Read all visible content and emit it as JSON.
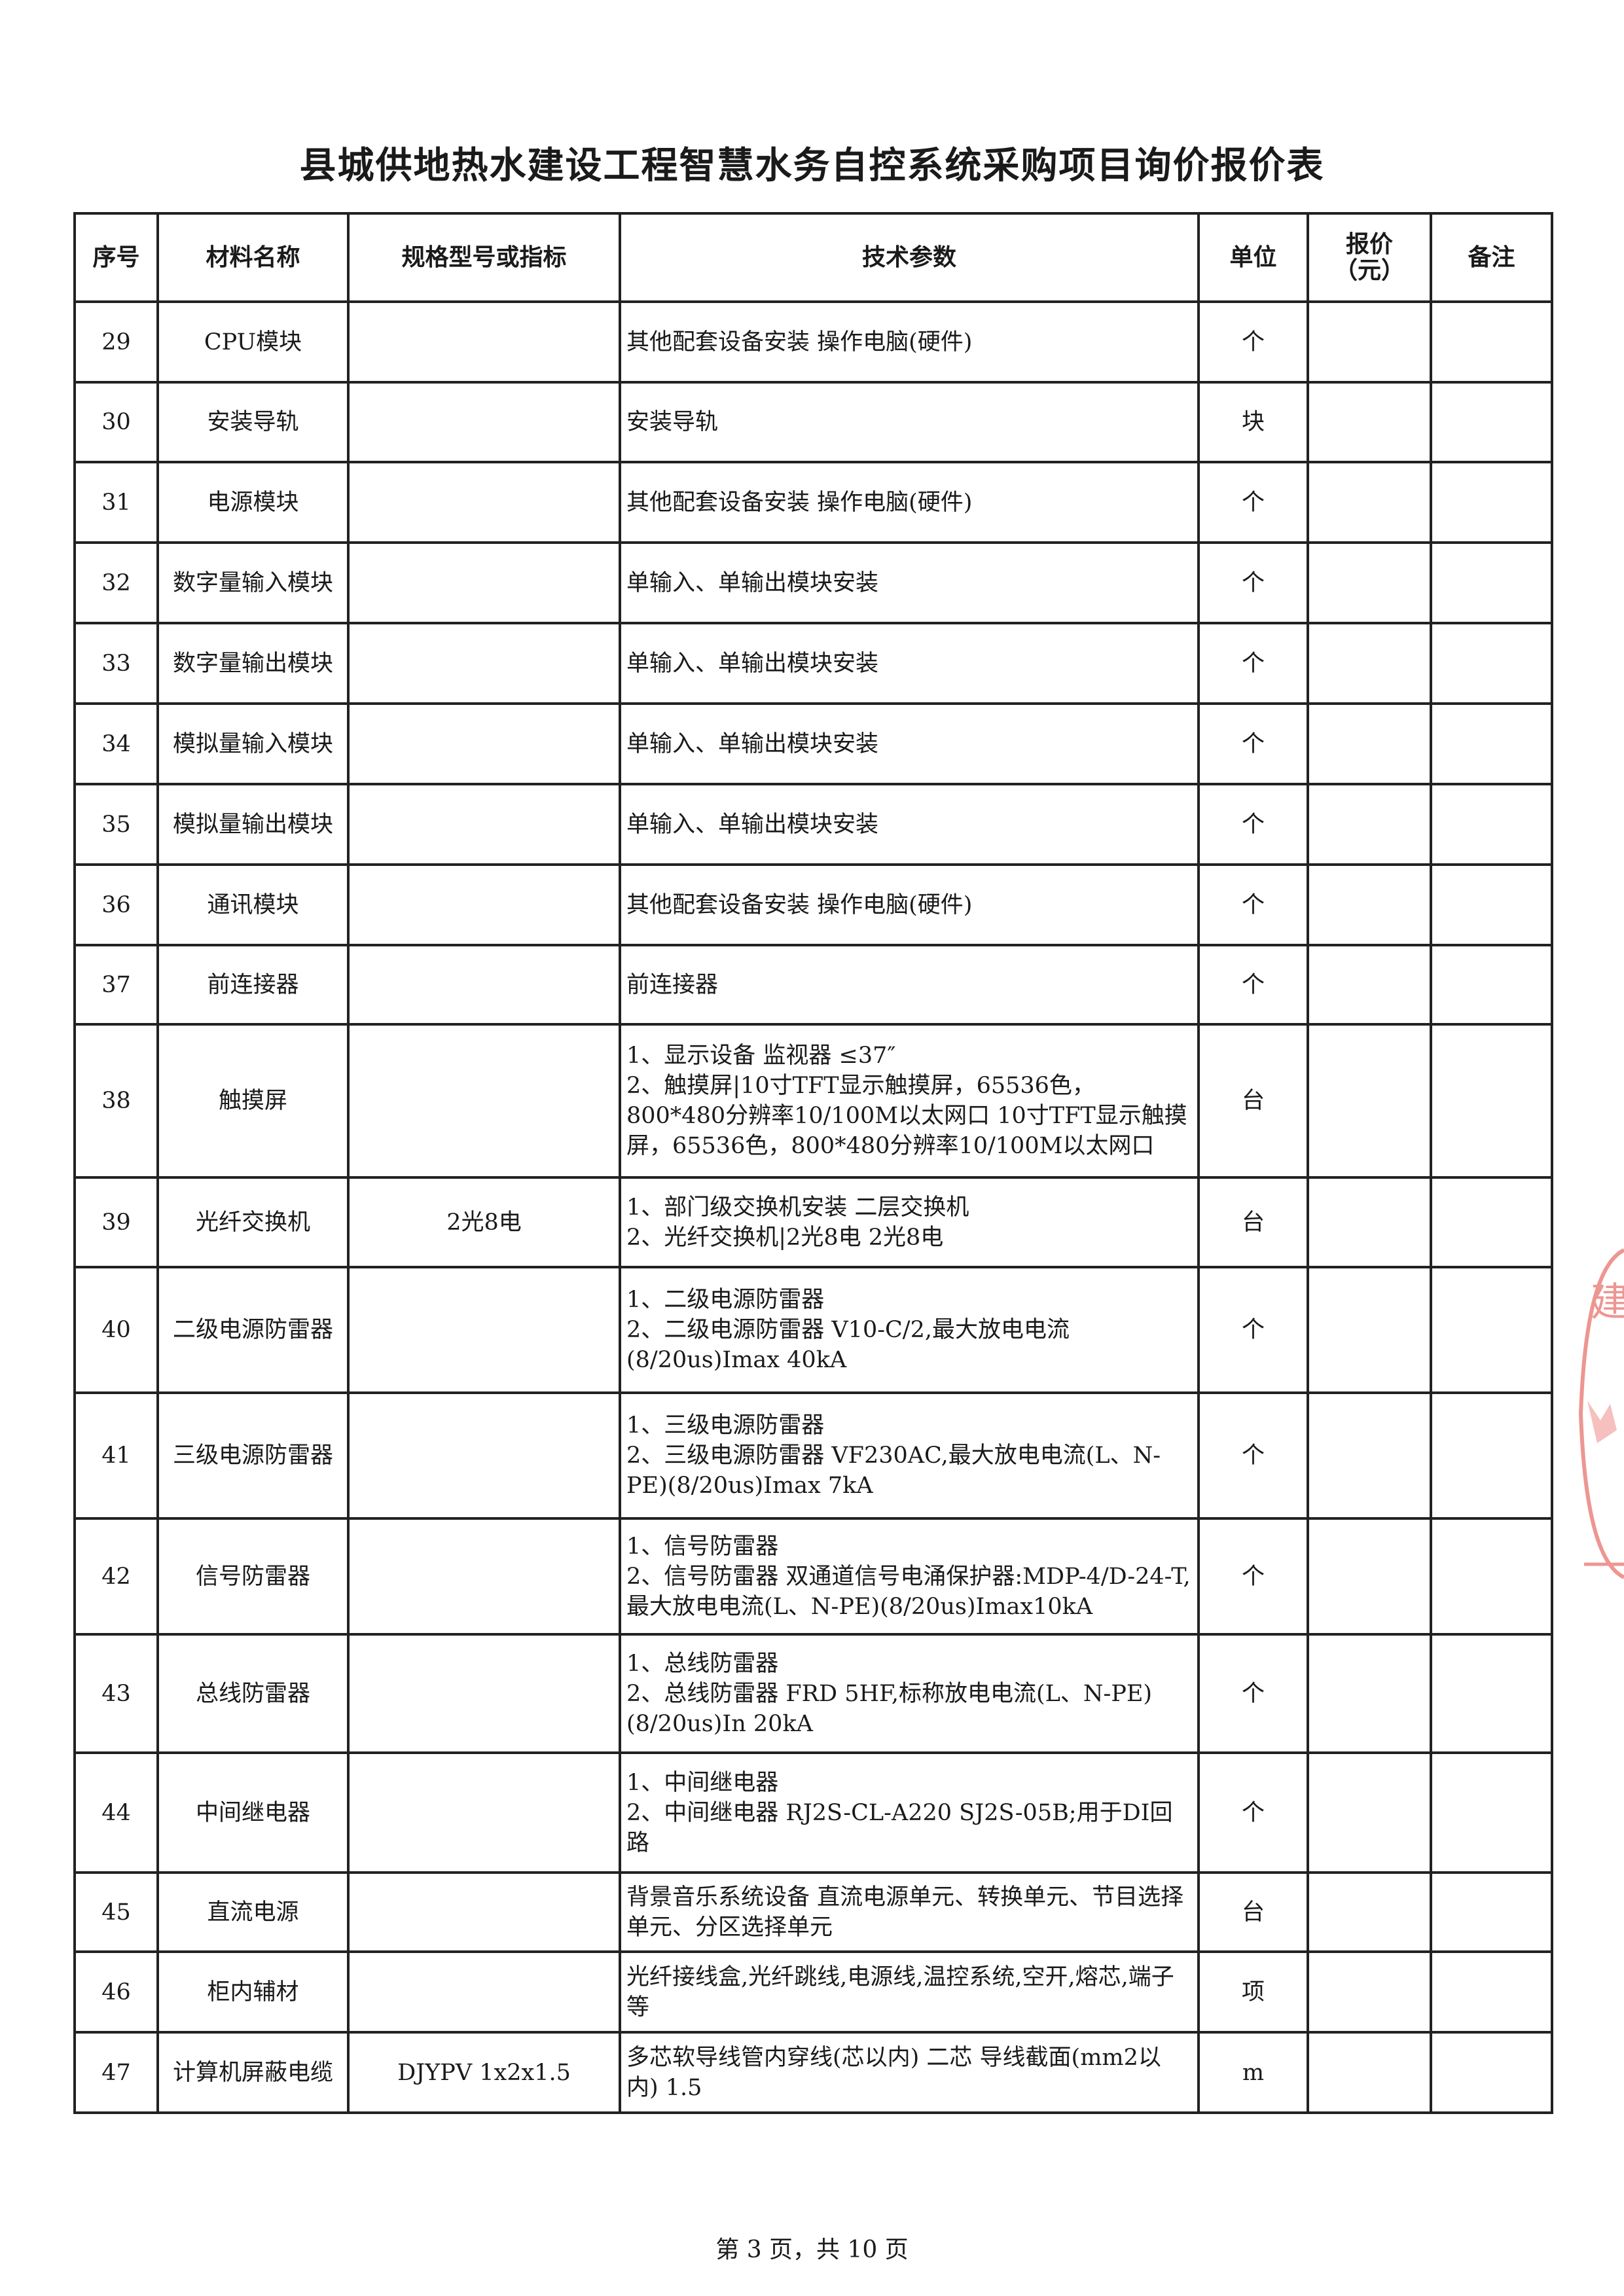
{
  "title": "县城供地热水建设工程智慧水务自控系统采购项目询价报价表",
  "table": {
    "headers": [
      "序号",
      "材料名称",
      "规格型号或指标",
      "技术参数",
      "单位",
      "报价\n（元）",
      "备注"
    ],
    "rows": [
      {
        "no": "29",
        "name": "CPU模块",
        "spec": "",
        "param": "其他配套设备安装 操作电脑(硬件)",
        "unit": "个",
        "price": "",
        "note": ""
      },
      {
        "no": "30",
        "name": "安装导轨",
        "spec": "",
        "param": "安装导轨",
        "unit": "块",
        "price": "",
        "note": ""
      },
      {
        "no": "31",
        "name": "电源模块",
        "spec": "",
        "param": "其他配套设备安装 操作电脑(硬件)",
        "unit": "个",
        "price": "",
        "note": ""
      },
      {
        "no": "32",
        "name": "数字量输入模块",
        "spec": "",
        "param": "单输入、单输出模块安装",
        "unit": "个",
        "price": "",
        "note": ""
      },
      {
        "no": "33",
        "name": "数字量输出模块",
        "spec": "",
        "param": "单输入、单输出模块安装",
        "unit": "个",
        "price": "",
        "note": ""
      },
      {
        "no": "34",
        "name": "模拟量输入模块",
        "spec": "",
        "param": "单输入、单输出模块安装",
        "unit": "个",
        "price": "",
        "note": ""
      },
      {
        "no": "35",
        "name": "模拟量输出模块",
        "spec": "",
        "param": "单输入、单输出模块安装",
        "unit": "个",
        "price": "",
        "note": ""
      },
      {
        "no": "36",
        "name": "通讯模块",
        "spec": "",
        "param": "其他配套设备安装 操作电脑(硬件)",
        "unit": "个",
        "price": "",
        "note": ""
      },
      {
        "no": "37",
        "name": "前连接器",
        "spec": "",
        "param": "前连接器",
        "unit": "个",
        "price": "",
        "note": ""
      },
      {
        "no": "38",
        "name": "触摸屏",
        "spec": "",
        "param": "1、显示设备 监视器 ≤37″\n2、触摸屏|10寸TFT显示触摸屏，65536色，800*480分辨率10/100M以太网口 10寸TFT显示触摸屏，65536色，800*480分辨率10/100M以太网口",
        "unit": "台",
        "price": "",
        "note": ""
      },
      {
        "no": "39",
        "name": "光纤交换机",
        "spec": "2光8电",
        "param": "1、部门级交换机安装 二层交换机\n2、光纤交换机|2光8电 2光8电",
        "unit": "台",
        "price": "",
        "note": ""
      },
      {
        "no": "40",
        "name": "二级电源防雷器",
        "spec": "",
        "param": "1、二级电源防雷器\n2、二级电源防雷器 V10-C/2,最大放电电流(8/20us)Imax 40kA",
        "unit": "个",
        "price": "",
        "note": ""
      },
      {
        "no": "41",
        "name": "三级电源防雷器",
        "spec": "",
        "param": "1、三级电源防雷器\n2、三级电源防雷器 VF230AC,最大放电电流(L、N-PE)(8/20us)Imax 7kA",
        "unit": "个",
        "price": "",
        "note": ""
      },
      {
        "no": "42",
        "name": "信号防雷器",
        "spec": "",
        "param": "1、信号防雷器\n2、信号防雷器 双通道信号电涌保护器:MDP-4/D-24-T,最大放电电流(L、N-PE)(8/20us)Imax10kA",
        "unit": "个",
        "price": "",
        "note": ""
      },
      {
        "no": "43",
        "name": "总线防雷器",
        "spec": "",
        "param": "1、总线防雷器\n2、总线防雷器 FRD 5HF,标称放电电流(L、N-PE)(8/20us)In 20kA",
        "unit": "个",
        "price": "",
        "note": ""
      },
      {
        "no": "44",
        "name": "中间继电器",
        "spec": "",
        "param": "1、中间继电器\n2、中间继电器 RJ2S-CL-A220 SJ2S-05B;用于DI回路",
        "unit": "个",
        "price": "",
        "note": ""
      },
      {
        "no": "45",
        "name": "直流电源",
        "spec": "",
        "param": "背景音乐系统设备 直流电源单元、转换单元、节目选择单元、分区选择单元",
        "unit": "台",
        "price": "",
        "note": ""
      },
      {
        "no": "46",
        "name": "柜内辅材",
        "spec": "",
        "param": "光纤接线盒,光纤跳线,电源线,温控系统,空开,熔芯,端子等",
        "unit": "项",
        "price": "",
        "note": ""
      },
      {
        "no": "47",
        "name": "计算机屏蔽电缆",
        "spec": "DJYPV 1x2x1.5",
        "param": "多芯软导线管内穿线(芯以内) 二芯 导线截面(mm2以内) 1.5",
        "unit": "m",
        "price": "",
        "note": ""
      }
    ]
  },
  "footer": "第 3 页，共 10 页",
  "stamp": {
    "text": "建",
    "color": "#e0413a"
  }
}
